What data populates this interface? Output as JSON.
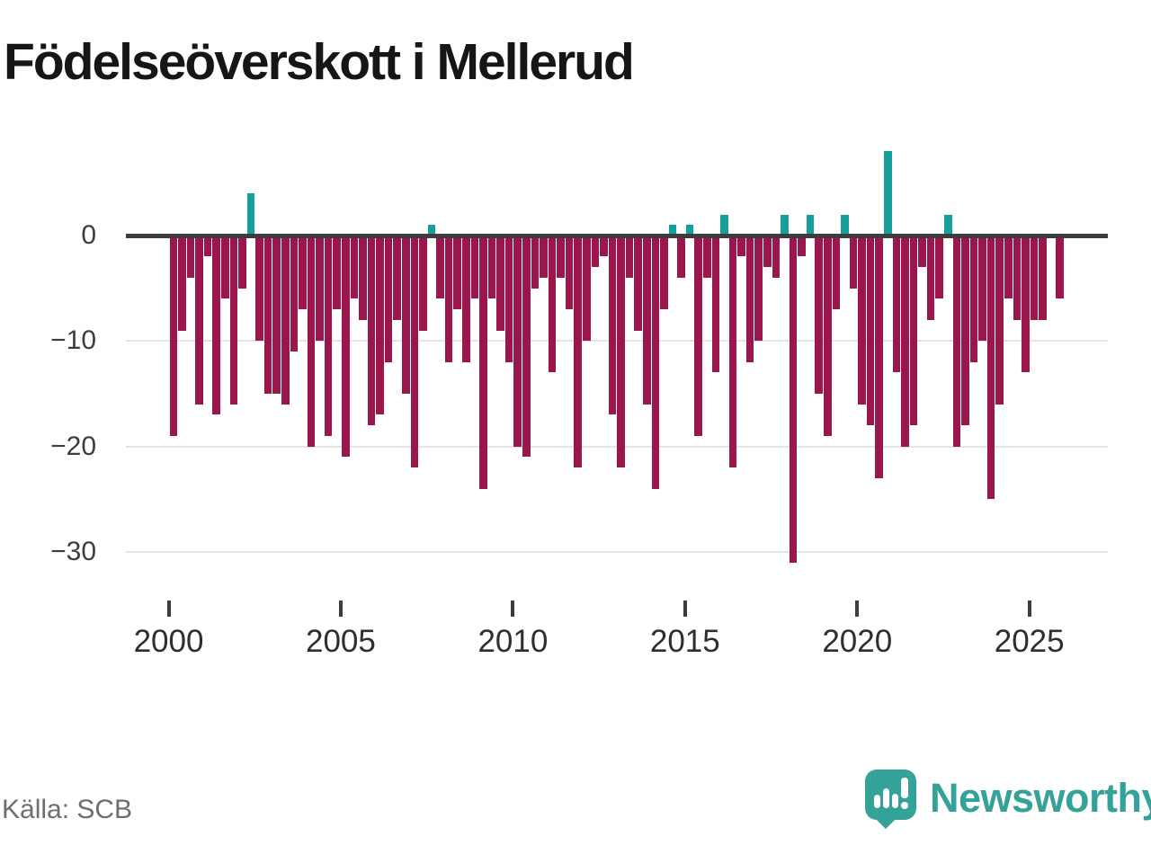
{
  "title": "Födelseöverskott i Mellerud",
  "source": "Källa: SCB",
  "branding": {
    "name": "Newsworthy"
  },
  "colors": {
    "negative_bar": "#9c164e",
    "positive_bar": "#169f9b",
    "axis": "#3d3d3d",
    "grid": "#e4e4e4",
    "title_text": "#161616",
    "tick_text": "#3d3d3d",
    "source_text": "#6d6d72",
    "logo_teal": "#35a29a"
  },
  "chart_data": {
    "type": "bar",
    "title": "Födelseöverskott i Mellerud",
    "grid": "horizontal",
    "ylim": [
      -33.5,
      9.3
    ],
    "y_ticks": [
      0,
      -10,
      -20,
      -30
    ],
    "y_tick_labels": [
      "0",
      "−10",
      "−20",
      "−30"
    ],
    "x_ticks": [
      2000,
      2005,
      2010,
      2015,
      2020,
      2025
    ],
    "x_tick_labels": [
      "2000",
      "2005",
      "2010",
      "2015",
      "2020",
      "2025"
    ],
    "categories": [
      "2000 Q1",
      "2000 Q2",
      "2000 Q3",
      "2000 Q4",
      "2001 Q1",
      "2001 Q2",
      "2001 Q3",
      "2001 Q4",
      "2002 Q1",
      "2002 Q2",
      "2002 Q3",
      "2002 Q4",
      "2003 Q1",
      "2003 Q2",
      "2003 Q3",
      "2003 Q4",
      "2004 Q1",
      "2004 Q2",
      "2004 Q3",
      "2004 Q4",
      "2005 Q1",
      "2005 Q2",
      "2005 Q3",
      "2005 Q4",
      "2006 Q1",
      "2006 Q2",
      "2006 Q3",
      "2006 Q4",
      "2007 Q1",
      "2007 Q2",
      "2007 Q3",
      "2007 Q4",
      "2008 Q1",
      "2008 Q2",
      "2008 Q3",
      "2008 Q4",
      "2009 Q1",
      "2009 Q2",
      "2009 Q3",
      "2009 Q4",
      "2010 Q1",
      "2010 Q2",
      "2010 Q3",
      "2010 Q4",
      "2011 Q1",
      "2011 Q2",
      "2011 Q3",
      "2011 Q4",
      "2012 Q1",
      "2012 Q2",
      "2012 Q3",
      "2012 Q4",
      "2013 Q1",
      "2013 Q2",
      "2013 Q3",
      "2013 Q4",
      "2014 Q1",
      "2014 Q2",
      "2014 Q3",
      "2014 Q4",
      "2015 Q1",
      "2015 Q2",
      "2015 Q3",
      "2015 Q4",
      "2016 Q1",
      "2016 Q2",
      "2016 Q3",
      "2016 Q4",
      "2017 Q1",
      "2017 Q2",
      "2017 Q3",
      "2017 Q4",
      "2018 Q1",
      "2018 Q2",
      "2018 Q3",
      "2018 Q4",
      "2019 Q1",
      "2019 Q2",
      "2019 Q3",
      "2019 Q4",
      "2020 Q1",
      "2020 Q2",
      "2020 Q3",
      "2020 Q4",
      "2021 Q1",
      "2021 Q2",
      "2021 Q3",
      "2021 Q4",
      "2022 Q1",
      "2022 Q2",
      "2022 Q3",
      "2022 Q4",
      "2023 Q1",
      "2023 Q2",
      "2023 Q3",
      "2023 Q4",
      "2024 Q1",
      "2024 Q2",
      "2024 Q3",
      "2024 Q4",
      "2025 Q1",
      "2025 Q2",
      "2025 Q3",
      "2025 Q4"
    ],
    "values": [
      -19,
      -9,
      -4,
      -16,
      -2,
      -17,
      -6,
      -16,
      -5,
      4,
      -10,
      -15,
      -15,
      -16,
      -11,
      -7,
      -20,
      -10,
      -19,
      -7,
      -21,
      -6,
      -8,
      -18,
      -17,
      -12,
      -8,
      -15,
      -22,
      -9,
      1,
      -6,
      -12,
      -7,
      -12,
      -6,
      -24,
      -6,
      -9,
      -12,
      -20,
      -21,
      -5,
      -4,
      -13,
      -4,
      -7,
      -22,
      -10,
      -3,
      -2,
      -17,
      -22,
      -4,
      -9,
      -16,
      -24,
      -7,
      1,
      -4,
      1,
      -19,
      -4,
      -13,
      2,
      -22,
      -2,
      -12,
      -10,
      -3,
      -4,
      2,
      -31,
      -2,
      2,
      -15,
      -19,
      -7,
      2,
      -5,
      -16,
      -18,
      -23,
      8,
      -13,
      -20,
      -18,
      -3,
      -8,
      -6,
      2,
      -20,
      -18,
      -12,
      -10,
      -25,
      -16,
      -6,
      -8,
      -13,
      -8,
      -8,
      0,
      -6
    ]
  }
}
